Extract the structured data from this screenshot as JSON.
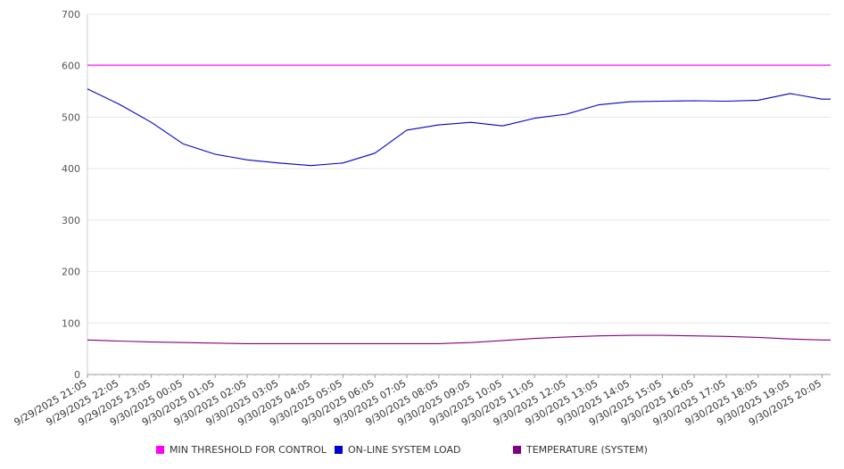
{
  "chart_data": {
    "type": "line",
    "title": "",
    "xlabel": "",
    "ylabel": "",
    "ylim": [
      0,
      700
    ],
    "yticks": [
      "0",
      "100",
      "200",
      "300",
      "400",
      "500",
      "600",
      "700"
    ],
    "grid": true,
    "legend_position": "bottom",
    "x": [
      "9/29/2025 21:05",
      "9/29/2025 22:05",
      "9/29/2025 23:05",
      "9/30/2025 00:05",
      "9/30/2025 01:05",
      "9/30/2025 02:05",
      "9/30/2025 03:05",
      "9/30/2025 04:05",
      "9/30/2025 05:05",
      "9/30/2025 06:05",
      "9/30/2025 07:05",
      "9/30/2025 08:05",
      "9/30/2025 09:05",
      "9/30/2025 10:05",
      "9/30/2025 11:05",
      "9/30/2025 12:05",
      "9/30/2025 13:05",
      "9/30/2025 14:05",
      "9/30/2025 15:05",
      "9/30/2025 16:05",
      "9/30/2025 17:05",
      "9/30/2025 18:05",
      "9/30/2025 19:05",
      "9/30/2025 20:05"
    ],
    "series": [
      {
        "name": "MIN THRESHOLD FOR CONTROL",
        "color": "#ff00ff",
        "values": [
          601,
          601,
          601,
          601,
          601,
          601,
          601,
          601,
          601,
          601,
          601,
          601,
          601,
          601,
          601,
          601,
          601,
          601,
          601,
          601,
          601,
          601,
          601,
          601
        ]
      },
      {
        "name": "ON-LINE SYSTEM LOAD",
        "color": "#0000cc",
        "values": [
          555,
          525,
          490,
          448,
          428,
          417,
          411,
          406,
          411,
          430,
          475,
          485,
          490,
          483,
          498,
          506,
          524,
          530,
          531,
          532,
          531,
          533,
          546,
          535
        ]
      },
      {
        "name": "TEMPERATURE (SYSTEM)",
        "color": "#800080",
        "values": [
          67,
          65,
          63,
          62,
          61,
          60,
          60,
          60,
          60,
          60,
          60,
          60,
          62,
          66,
          70,
          73,
          75,
          76,
          76,
          75,
          74,
          72,
          69,
          67
        ]
      }
    ]
  }
}
